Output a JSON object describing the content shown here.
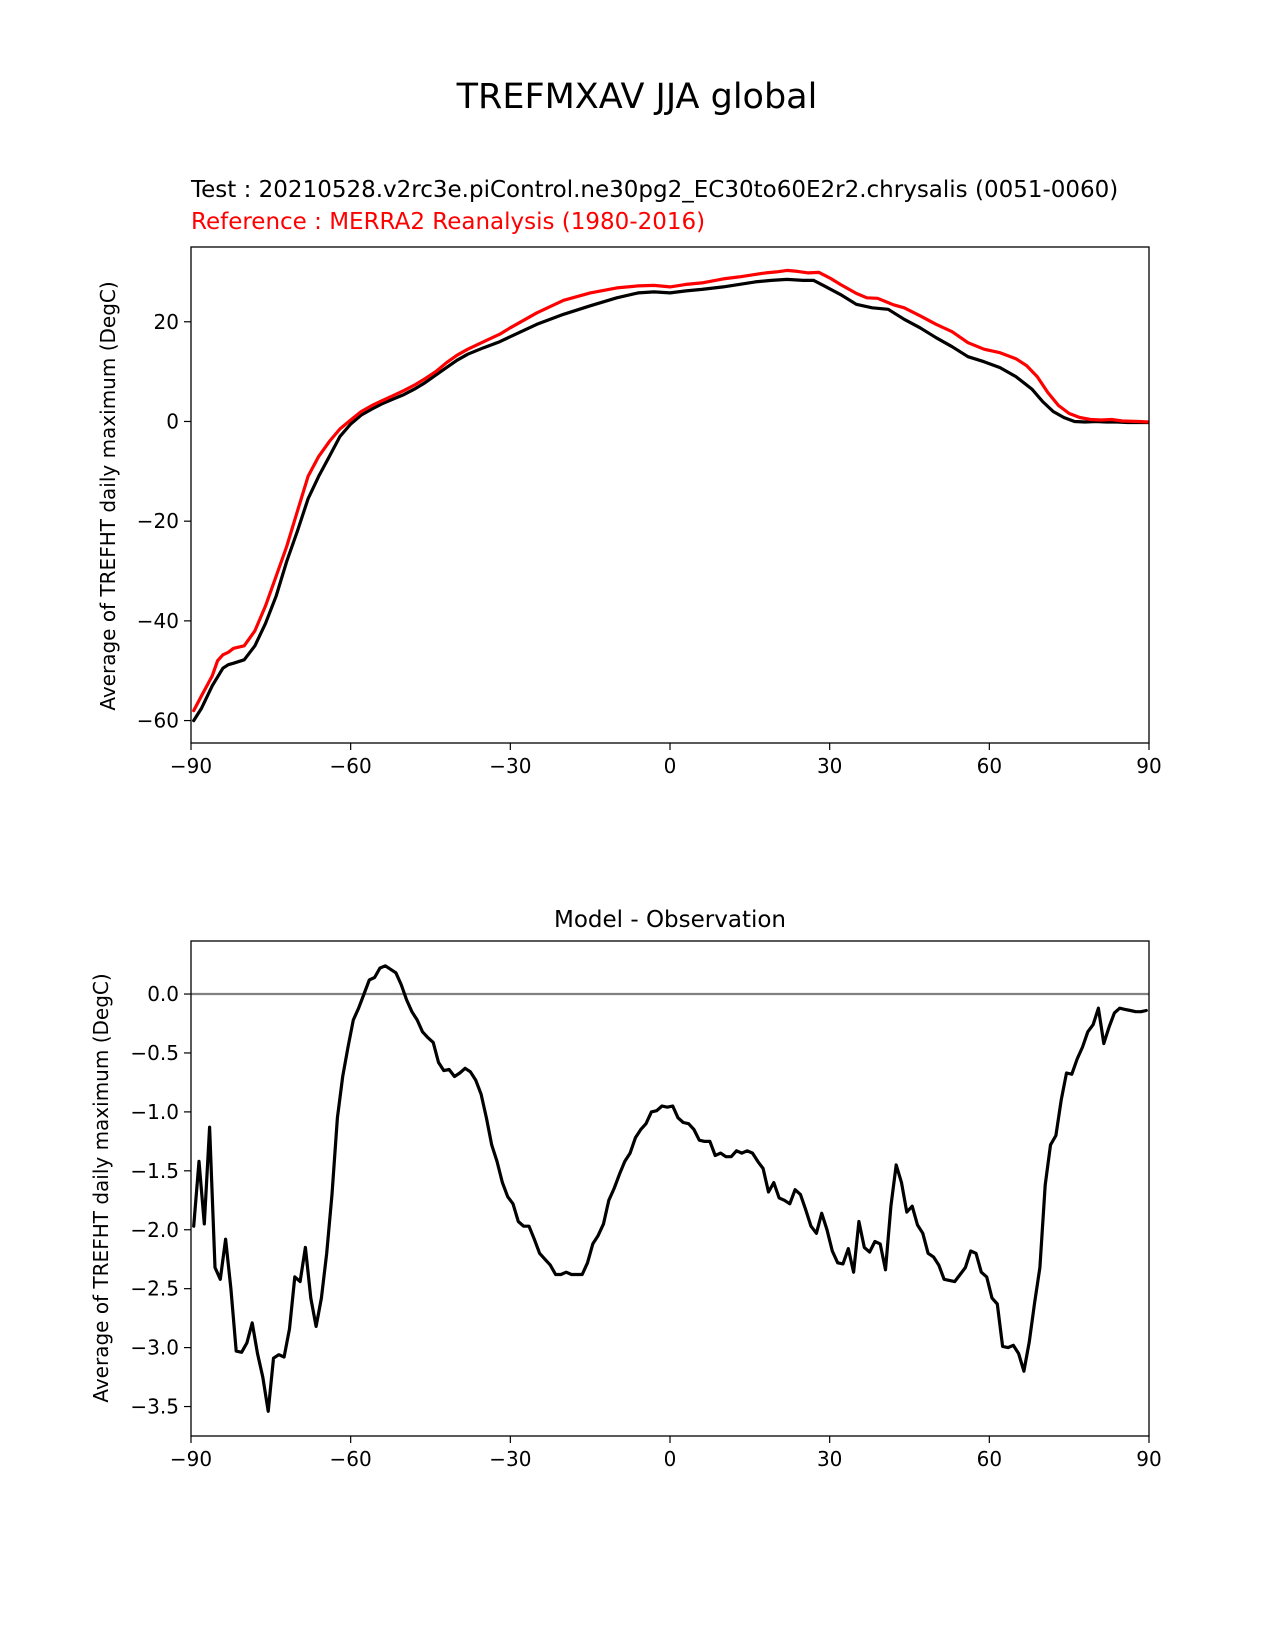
{
  "figure_title": "TREFMXAV JJA global",
  "chart_data": [
    {
      "type": "line",
      "test_label": "Test : 20210528.v2rc3e.piControl.ne30pg2_EC30to60E2r2.chrysalis (0051-0060)",
      "reference_label": "Reference : MERRA2 Reanalysis (1980-2016)",
      "xlabel": "",
      "ylabel": "Average of TREFHT daily maximum (DegC)",
      "xlim": [
        -90,
        90
      ],
      "ylim": [
        -64.5,
        35
      ],
      "xticks": [
        -90,
        -60,
        -30,
        0,
        30,
        60,
        90
      ],
      "xtick_labels": [
        "−90",
        "−60",
        "−30",
        "0",
        "30",
        "60",
        "90"
      ],
      "yticks": [
        -60,
        -40,
        -20,
        0,
        20
      ],
      "ytick_labels": [
        "−60",
        "−40",
        "−20",
        "0",
        "20"
      ],
      "series": [
        {
          "name": "Test",
          "color": "#000000",
          "x": [
            -89.5,
            -88,
            -86,
            -84,
            -83,
            -82,
            -80,
            -78,
            -76,
            -74,
            -72,
            -70,
            -68,
            -66,
            -64,
            -62,
            -60,
            -58,
            -56,
            -54,
            -52,
            -50,
            -48,
            -46,
            -44,
            -42,
            -40,
            -38,
            -35,
            -32,
            -30,
            -25,
            -20,
            -15,
            -10,
            -6,
            -3,
            0,
            3,
            6,
            10,
            13,
            16,
            19,
            22,
            25,
            27,
            29,
            32,
            35,
            38,
            41,
            44,
            47,
            50,
            53,
            56,
            59,
            62,
            65,
            68,
            70,
            72,
            74,
            76,
            78,
            80,
            82,
            84,
            86,
            88,
            90
          ],
          "values": [
            -60,
            -57.5,
            -53,
            -49.5,
            -48.8,
            -48.5,
            -47.8,
            -45,
            -40.5,
            -35,
            -28,
            -22,
            -15.5,
            -11,
            -7,
            -3,
            -0.5,
            1.3,
            2.5,
            3.6,
            4.5,
            5.4,
            6.5,
            7.8,
            9.3,
            10.8,
            12.3,
            13.5,
            14.8,
            16,
            17,
            19.5,
            21.5,
            23.2,
            24.8,
            25.8,
            26,
            25.8,
            26.2,
            26.5,
            27,
            27.5,
            28,
            28.3,
            28.5,
            28.3,
            28.3,
            27.2,
            25.5,
            23.5,
            22.8,
            22.5,
            20.5,
            18.8,
            16.8,
            15,
            13,
            12,
            10.8,
            9,
            6.5,
            4,
            2,
            0.8,
            0,
            -0.1,
            0,
            -0.1,
            -0.1,
            -0.2,
            -0.2,
            -0.2
          ]
        },
        {
          "name": "Reference",
          "color": "#ff0000",
          "x": [
            -89.5,
            -88,
            -86,
            -85,
            -84,
            -83,
            -82,
            -80,
            -78,
            -76,
            -74,
            -72,
            -70,
            -68,
            -66,
            -64,
            -62,
            -60,
            -58,
            -56,
            -54,
            -52,
            -50,
            -48,
            -46,
            -44,
            -42,
            -40,
            -38,
            -35,
            -32,
            -30,
            -25,
            -20,
            -15,
            -10,
            -6,
            -3,
            0,
            3,
            6,
            10,
            13,
            16,
            18,
            20,
            22,
            24,
            26,
            28,
            30,
            32,
            35,
            37,
            39,
            42,
            44,
            47,
            50,
            53,
            56,
            59,
            62,
            65,
            67,
            69,
            71,
            73,
            75,
            77,
            79,
            81,
            83,
            85,
            88,
            90
          ],
          "values": [
            -58,
            -55,
            -51,
            -48,
            -46.8,
            -46.3,
            -45.5,
            -45,
            -42,
            -37,
            -31,
            -25,
            -18,
            -11,
            -7,
            -4,
            -1.5,
            0.3,
            2,
            3.2,
            4.2,
            5.2,
            6.2,
            7.3,
            8.6,
            10,
            11.8,
            13.3,
            14.5,
            16,
            17.5,
            18.8,
            21.8,
            24.3,
            25.8,
            26.8,
            27.2,
            27.3,
            27,
            27.5,
            27.8,
            28.6,
            29,
            29.5,
            29.8,
            30,
            30.3,
            30.1,
            29.8,
            29.9,
            28.8,
            27.5,
            25.7,
            24.8,
            24.7,
            23.4,
            22.8,
            21.2,
            19.5,
            18,
            15.8,
            14.5,
            13.8,
            12.6,
            11.2,
            9,
            5.8,
            3.2,
            1.6,
            0.8,
            0.4,
            0.3,
            0.4,
            0.1,
            0,
            -0.1
          ]
        }
      ]
    },
    {
      "type": "line",
      "title": "Model - Observation",
      "xlabel": "",
      "ylabel": "Average of TREFHT daily maximum (DegC)",
      "xlim": [
        -90,
        90
      ],
      "ylim": [
        -3.75,
        0.45
      ],
      "xticks": [
        -90,
        -60,
        -30,
        0,
        30,
        60,
        90
      ],
      "xtick_labels": [
        "−90",
        "−60",
        "−30",
        "0",
        "30",
        "60",
        "90"
      ],
      "yticks": [
        -3.5,
        -3.0,
        -2.5,
        -2.0,
        -1.5,
        -1.0,
        -0.5,
        0.0
      ],
      "ytick_labels": [
        "−3.5",
        "−3.0",
        "−2.5",
        "−2.0",
        "−1.5",
        "−1.0",
        "−0.5",
        "0.0"
      ],
      "zero_line": 0,
      "zero_line_color": "#808080",
      "series": [
        {
          "name": "Model - Observation",
          "color": "#000000",
          "x": [
            -89.5,
            -88.5,
            -87.5,
            -86.5,
            -85.5,
            -84.5,
            -83.5,
            -82.5,
            -81.5,
            -80.5,
            -79.5,
            -78.5,
            -77.5,
            -76.5,
            -75.5,
            -74.5,
            -73.5,
            -72.5,
            -71.5,
            -70.5,
            -69.5,
            -68.5,
            -67.5,
            -66.5,
            -65.5,
            -64.5,
            -63.5,
            -62.5,
            -61.5,
            -60.5,
            -59.5,
            -58.5,
            -57.5,
            -56.5,
            -55.5,
            -54.5,
            -53.5,
            -52.5,
            -51.5,
            -50.5,
            -49.5,
            -48.5,
            -47.5,
            -46.5,
            -45.5,
            -44.5,
            -43.5,
            -42.5,
            -41.5,
            -40.5,
            -39.5,
            -38.5,
            -37.5,
            -36.5,
            -35.5,
            -34.5,
            -33.5,
            -32.5,
            -31.5,
            -30.5,
            -29.5,
            -28.5,
            -27.5,
            -26.5,
            -25.5,
            -24.5,
            -23.5,
            -22.5,
            -21.5,
            -20.5,
            -19.5,
            -18.5,
            -17.5,
            -16.5,
            -15.5,
            -14.5,
            -13.5,
            -12.5,
            -11.5,
            -10.5,
            -9.5,
            -8.5,
            -7.5,
            -6.5,
            -5.5,
            -4.5,
            -3.5,
            -2.5,
            -1.5,
            -0.5,
            0.5,
            1.5,
            2.5,
            3.5,
            4.5,
            5.5,
            6.5,
            7.5,
            8.5,
            9.5,
            10.5,
            11.5,
            12.5,
            13.5,
            14.5,
            15.5,
            16.5,
            17.5,
            18.5,
            19.5,
            20.5,
            21.5,
            22.5,
            23.5,
            24.5,
            25.5,
            26.5,
            27.5,
            28.5,
            29.5,
            30.5,
            31.5,
            32.5,
            33.5,
            34.5,
            35.5,
            36.5,
            37.5,
            38.5,
            39.5,
            40.5,
            41.5,
            42.5,
            43.5,
            44.5,
            45.5,
            46.5,
            47.5,
            48.5,
            49.5,
            50.5,
            51.5,
            52.5,
            53.5,
            54.5,
            55.5,
            56.5,
            57.5,
            58.5,
            59.5,
            60.5,
            61.5,
            62.5,
            63.5,
            64.5,
            65.5,
            66.5,
            67.5,
            68.5,
            69.5,
            70.5,
            71.5,
            72.5,
            73.5,
            74.5,
            75.5,
            76.5,
            77.5,
            78.5,
            79.5,
            80.5,
            81.5,
            82.5,
            83.5,
            84.5,
            85.5,
            86.5,
            87.5,
            88.5,
            89.5
          ],
          "values": [
            -1.97,
            -1.42,
            -1.95,
            -1.13,
            -2.32,
            -2.42,
            -2.08,
            -2.5,
            -3.03,
            -3.04,
            -2.96,
            -2.79,
            -3.05,
            -3.25,
            -3.54,
            -3.09,
            -3.06,
            -3.08,
            -2.84,
            -2.4,
            -2.44,
            -2.15,
            -2.58,
            -2.82,
            -2.58,
            -2.2,
            -1.7,
            -1.05,
            -0.7,
            -0.45,
            -0.22,
            -0.12,
            0.0,
            0.12,
            0.14,
            0.22,
            0.24,
            0.21,
            0.18,
            0.08,
            -0.05,
            -0.15,
            -0.22,
            -0.32,
            -0.37,
            -0.41,
            -0.58,
            -0.65,
            -0.64,
            -0.7,
            -0.67,
            -0.63,
            -0.66,
            -0.73,
            -0.85,
            -1.05,
            -1.28,
            -1.42,
            -1.6,
            -1.72,
            -1.78,
            -1.93,
            -1.97,
            -1.97,
            -2.08,
            -2.2,
            -2.25,
            -2.3,
            -2.38,
            -2.38,
            -2.36,
            -2.38,
            -2.38,
            -2.38,
            -2.28,
            -2.12,
            -2.05,
            -1.95,
            -1.75,
            -1.65,
            -1.53,
            -1.42,
            -1.35,
            -1.22,
            -1.15,
            -1.1,
            -1.0,
            -0.99,
            -0.95,
            -0.96,
            -0.95,
            -1.05,
            -1.09,
            -1.1,
            -1.15,
            -1.24,
            -1.25,
            -1.25,
            -1.37,
            -1.35,
            -1.38,
            -1.38,
            -1.33,
            -1.35,
            -1.33,
            -1.35,
            -1.42,
            -1.48,
            -1.68,
            -1.6,
            -1.73,
            -1.75,
            -1.78,
            -1.66,
            -1.7,
            -1.83,
            -1.97,
            -2.03,
            -1.86,
            -2.0,
            -2.18,
            -2.28,
            -2.29,
            -2.16,
            -2.36,
            -1.93,
            -2.15,
            -2.19,
            -2.1,
            -2.12,
            -2.34,
            -1.8,
            -1.45,
            -1.6,
            -1.85,
            -1.8,
            -1.96,
            -2.03,
            -2.2,
            -2.23,
            -2.3,
            -2.42,
            -2.43,
            -2.44,
            -2.38,
            -2.32,
            -2.18,
            -2.2,
            -2.36,
            -2.4,
            -2.58,
            -2.63,
            -2.99,
            -3.0,
            -2.98,
            -3.05,
            -3.2,
            -2.95,
            -2.62,
            -2.32,
            -1.62,
            -1.28,
            -1.2,
            -0.9,
            -0.67,
            -0.68,
            -0.55,
            -0.45,
            -0.32,
            -0.26,
            -0.12,
            -0.42,
            -0.28,
            -0.16,
            -0.12,
            -0.13,
            -0.14,
            -0.15,
            -0.15,
            -0.14
          ]
        }
      ]
    }
  ]
}
